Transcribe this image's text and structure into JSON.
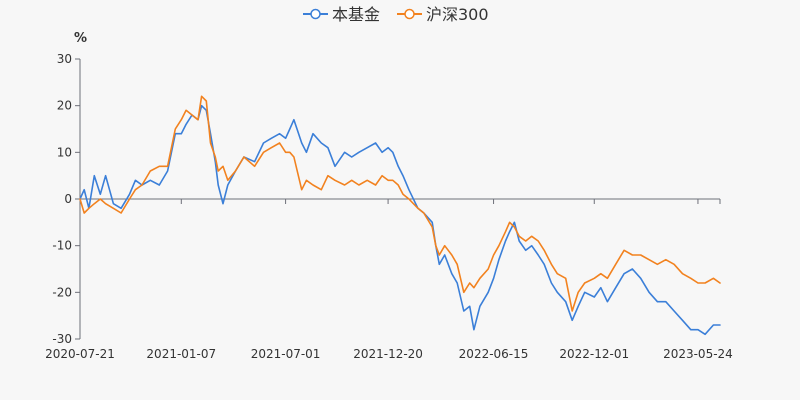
{
  "chart_data": {
    "type": "line",
    "title": "",
    "xlabel": "",
    "ylabel": "%",
    "ylim": [
      -30,
      30
    ],
    "yticks": [
      30,
      20,
      10,
      0,
      -10,
      -20,
      -30
    ],
    "x_start": "2020-07-21",
    "x_end": "2023-06-30",
    "x_ticks": [
      "2020-07-21",
      "2021-01-07",
      "2021-07-01",
      "2021-12-20",
      "2022-06-15",
      "2022-12-01",
      "2023-05-24"
    ],
    "legend_position": "top-center",
    "colors": {
      "fund": "#3b7fd8",
      "hs300": "#f2821f",
      "axis": "#6e7079",
      "text": "#333333"
    },
    "series": [
      {
        "name": "本基金",
        "color": "#3b7fd8",
        "points": [
          [
            "2020-07-21",
            0
          ],
          [
            "2020-07-28",
            2
          ],
          [
            "2020-08-05",
            -2
          ],
          [
            "2020-08-14",
            5
          ],
          [
            "2020-08-24",
            1
          ],
          [
            "2020-09-02",
            5
          ],
          [
            "2020-09-15",
            -1
          ],
          [
            "2020-09-28",
            -2
          ],
          [
            "2020-10-12",
            1
          ],
          [
            "2020-10-22",
            4
          ],
          [
            "2020-11-02",
            3
          ],
          [
            "2020-11-16",
            4
          ],
          [
            "2020-12-01",
            3
          ],
          [
            "2020-12-15",
            6
          ],
          [
            "2020-12-28",
            14
          ],
          [
            "2021-01-07",
            14
          ],
          [
            "2021-01-15",
            16
          ],
          [
            "2021-01-25",
            18
          ],
          [
            "2021-02-04",
            17
          ],
          [
            "2021-02-10",
            20
          ],
          [
            "2021-02-18",
            19
          ],
          [
            "2021-02-25",
            14
          ],
          [
            "2021-03-05",
            8
          ],
          [
            "2021-03-10",
            3
          ],
          [
            "2021-03-18",
            -1
          ],
          [
            "2021-03-26",
            3
          ],
          [
            "2021-04-08",
            6
          ],
          [
            "2021-04-22",
            9
          ],
          [
            "2021-05-10",
            8
          ],
          [
            "2021-05-25",
            12
          ],
          [
            "2021-06-07",
            13
          ],
          [
            "2021-06-21",
            14
          ],
          [
            "2021-07-01",
            13
          ],
          [
            "2021-07-08",
            15
          ],
          [
            "2021-07-15",
            17
          ],
          [
            "2021-07-28",
            12
          ],
          [
            "2021-08-05",
            10
          ],
          [
            "2021-08-16",
            14
          ],
          [
            "2021-08-30",
            12
          ],
          [
            "2021-09-10",
            11
          ],
          [
            "2021-09-22",
            7
          ],
          [
            "2021-10-08",
            10
          ],
          [
            "2021-10-20",
            9
          ],
          [
            "2021-11-01",
            10
          ],
          [
            "2021-11-15",
            11
          ],
          [
            "2021-11-29",
            12
          ],
          [
            "2021-12-10",
            10
          ],
          [
            "2021-12-20",
            11
          ],
          [
            "2021-12-28",
            10
          ],
          [
            "2022-01-06",
            7
          ],
          [
            "2022-01-14",
            5
          ],
          [
            "2022-01-24",
            2
          ],
          [
            "2022-02-08",
            -2
          ],
          [
            "2022-02-18",
            -3
          ],
          [
            "2022-03-04",
            -5
          ],
          [
            "2022-03-10",
            -10
          ],
          [
            "2022-03-16",
            -14
          ],
          [
            "2022-03-25",
            -12
          ],
          [
            "2022-04-06",
            -16
          ],
          [
            "2022-04-15",
            -18
          ],
          [
            "2022-04-26",
            -24
          ],
          [
            "2022-05-06",
            -23
          ],
          [
            "2022-05-13",
            -28
          ],
          [
            "2022-05-23",
            -23
          ],
          [
            "2022-06-06",
            -20
          ],
          [
            "2022-06-15",
            -17
          ],
          [
            "2022-06-24",
            -13
          ],
          [
            "2022-07-05",
            -9
          ],
          [
            "2022-07-12",
            -7
          ],
          [
            "2022-07-20",
            -5
          ],
          [
            "2022-07-28",
            -9
          ],
          [
            "2022-08-08",
            -11
          ],
          [
            "2022-08-18",
            -10
          ],
          [
            "2022-08-29",
            -12
          ],
          [
            "2022-09-08",
            -14
          ],
          [
            "2022-09-20",
            -18
          ],
          [
            "2022-09-30",
            -20
          ],
          [
            "2022-10-14",
            -22
          ],
          [
            "2022-10-25",
            -26
          ],
          [
            "2022-11-04",
            -23
          ],
          [
            "2022-11-15",
            -20
          ],
          [
            "2022-12-01",
            -21
          ],
          [
            "2022-12-12",
            -19
          ],
          [
            "2022-12-23",
            -22
          ],
          [
            "2023-01-06",
            -19
          ],
          [
            "2023-01-20",
            -16
          ],
          [
            "2023-02-03",
            -15
          ],
          [
            "2023-02-17",
            -17
          ],
          [
            "2023-03-03",
            -20
          ],
          [
            "2023-03-17",
            -22
          ],
          [
            "2023-03-31",
            -22
          ],
          [
            "2023-04-14",
            -24
          ],
          [
            "2023-04-28",
            -26
          ],
          [
            "2023-05-12",
            -28
          ],
          [
            "2023-05-24",
            -28
          ],
          [
            "2023-06-05",
            -29
          ],
          [
            "2023-06-19",
            -27
          ],
          [
            "2023-06-30",
            -27
          ]
        ]
      },
      {
        "name": "沪深300",
        "color": "#f2821f",
        "points": [
          [
            "2020-07-21",
            0
          ],
          [
            "2020-07-28",
            -3
          ],
          [
            "2020-08-05",
            -2
          ],
          [
            "2020-08-14",
            -1
          ],
          [
            "2020-08-24",
            0
          ],
          [
            "2020-09-02",
            -1
          ],
          [
            "2020-09-15",
            -2
          ],
          [
            "2020-09-28",
            -3
          ],
          [
            "2020-10-12",
            0
          ],
          [
            "2020-10-22",
            2
          ],
          [
            "2020-11-02",
            3
          ],
          [
            "2020-11-16",
            6
          ],
          [
            "2020-12-01",
            7
          ],
          [
            "2020-12-15",
            7
          ],
          [
            "2020-12-28",
            15
          ],
          [
            "2021-01-07",
            17
          ],
          [
            "2021-01-15",
            19
          ],
          [
            "2021-01-25",
            18
          ],
          [
            "2021-02-04",
            17
          ],
          [
            "2021-02-10",
            22
          ],
          [
            "2021-02-18",
            21
          ],
          [
            "2021-02-25",
            12
          ],
          [
            "2021-03-05",
            9
          ],
          [
            "2021-03-10",
            6
          ],
          [
            "2021-03-18",
            7
          ],
          [
            "2021-03-26",
            4
          ],
          [
            "2021-04-08",
            6
          ],
          [
            "2021-04-22",
            9
          ],
          [
            "2021-05-10",
            7
          ],
          [
            "2021-05-25",
            10
          ],
          [
            "2021-06-07",
            11
          ],
          [
            "2021-06-21",
            12
          ],
          [
            "2021-07-01",
            10
          ],
          [
            "2021-07-08",
            10
          ],
          [
            "2021-07-15",
            9
          ],
          [
            "2021-07-28",
            2
          ],
          [
            "2021-08-05",
            4
          ],
          [
            "2021-08-16",
            3
          ],
          [
            "2021-08-30",
            2
          ],
          [
            "2021-09-10",
            5
          ],
          [
            "2021-09-22",
            4
          ],
          [
            "2021-10-08",
            3
          ],
          [
            "2021-10-20",
            4
          ],
          [
            "2021-11-01",
            3
          ],
          [
            "2021-11-15",
            4
          ],
          [
            "2021-11-29",
            3
          ],
          [
            "2021-12-10",
            5
          ],
          [
            "2021-12-20",
            4
          ],
          [
            "2021-12-28",
            4
          ],
          [
            "2022-01-06",
            3
          ],
          [
            "2022-01-14",
            1
          ],
          [
            "2022-01-24",
            0
          ],
          [
            "2022-02-08",
            -2
          ],
          [
            "2022-02-18",
            -3
          ],
          [
            "2022-03-04",
            -6
          ],
          [
            "2022-03-10",
            -10
          ],
          [
            "2022-03-16",
            -12
          ],
          [
            "2022-03-25",
            -10
          ],
          [
            "2022-04-06",
            -12
          ],
          [
            "2022-04-15",
            -14
          ],
          [
            "2022-04-26",
            -20
          ],
          [
            "2022-05-06",
            -18
          ],
          [
            "2022-05-13",
            -19
          ],
          [
            "2022-05-23",
            -17
          ],
          [
            "2022-06-06",
            -15
          ],
          [
            "2022-06-15",
            -12
          ],
          [
            "2022-06-24",
            -10
          ],
          [
            "2022-07-05",
            -7
          ],
          [
            "2022-07-12",
            -5
          ],
          [
            "2022-07-20",
            -6
          ],
          [
            "2022-07-28",
            -8
          ],
          [
            "2022-08-08",
            -9
          ],
          [
            "2022-08-18",
            -8
          ],
          [
            "2022-08-29",
            -9
          ],
          [
            "2022-09-08",
            -11
          ],
          [
            "2022-09-20",
            -14
          ],
          [
            "2022-09-30",
            -16
          ],
          [
            "2022-10-14",
            -17
          ],
          [
            "2022-10-25",
            -24
          ],
          [
            "2022-11-04",
            -20
          ],
          [
            "2022-11-15",
            -18
          ],
          [
            "2022-12-01",
            -17
          ],
          [
            "2022-12-12",
            -16
          ],
          [
            "2022-12-23",
            -17
          ],
          [
            "2023-01-06",
            -14
          ],
          [
            "2023-01-20",
            -11
          ],
          [
            "2023-02-03",
            -12
          ],
          [
            "2023-02-17",
            -12
          ],
          [
            "2023-03-03",
            -13
          ],
          [
            "2023-03-17",
            -14
          ],
          [
            "2023-03-31",
            -13
          ],
          [
            "2023-04-14",
            -14
          ],
          [
            "2023-04-28",
            -16
          ],
          [
            "2023-05-12",
            -17
          ],
          [
            "2023-05-24",
            -18
          ],
          [
            "2023-06-05",
            -18
          ],
          [
            "2023-06-19",
            -17
          ],
          [
            "2023-06-30",
            -18
          ]
        ]
      }
    ]
  }
}
